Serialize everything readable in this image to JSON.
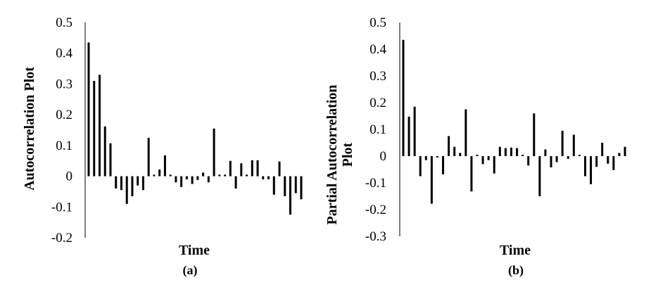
{
  "chart_data": [
    {
      "type": "bar",
      "xlabel": "Time",
      "ylabel": "Autocorrelation Plot",
      "caption": "(a)",
      "ylim": [
        -0.2,
        0.5
      ],
      "yticks": [
        "0.5",
        "0.4",
        "0.3",
        "0.2",
        "0.1",
        "0",
        "-0.1",
        "-0.2"
      ],
      "yticks_values": [
        0.5,
        0.4,
        0.3,
        0.2,
        0.1,
        0,
        -0.1,
        -0.2
      ],
      "values": [
        0.435,
        0.31,
        0.33,
        0.162,
        0.107,
        -0.04,
        -0.045,
        -0.09,
        -0.065,
        -0.03,
        -0.045,
        0.125,
        0.005,
        0.022,
        0.068,
        0.005,
        -0.02,
        -0.035,
        -0.01,
        -0.025,
        -0.012,
        0.012,
        -0.02,
        0.155,
        0.005,
        0.005,
        0.05,
        -0.04,
        0.042,
        0.005,
        0.052,
        0.052,
        -0.01,
        -0.01,
        -0.06,
        0.048,
        -0.065,
        -0.125,
        -0.055,
        -0.075
      ]
    },
    {
      "type": "bar",
      "xlabel": "Time",
      "ylabel_lines": [
        "Partial Autocorrelation",
        "Plot"
      ],
      "caption": "(b)",
      "ylim": [
        -0.3,
        0.5
      ],
      "yticks": [
        "0.5",
        "0.4",
        "0.3",
        "0.2",
        "0.1",
        "0",
        "-0.1",
        "-0.2",
        "-0.3"
      ],
      "yticks_values": [
        0.5,
        0.4,
        0.3,
        0.2,
        0.1,
        0,
        -0.1,
        -0.2,
        -0.3
      ],
      "values": [
        0.435,
        0.148,
        0.185,
        -0.075,
        -0.015,
        -0.178,
        -0.005,
        -0.068,
        0.075,
        0.035,
        0.012,
        0.175,
        -0.132,
        0.005,
        -0.03,
        -0.015,
        -0.065,
        0.035,
        0.03,
        0.032,
        0.03,
        0.005,
        -0.035,
        0.16,
        -0.15,
        0.025,
        -0.042,
        -0.022,
        0.095,
        -0.01,
        0.08,
        0.005,
        -0.075,
        -0.105,
        -0.04,
        0.05,
        -0.028,
        -0.052,
        0.012,
        0.035
      ]
    }
  ]
}
